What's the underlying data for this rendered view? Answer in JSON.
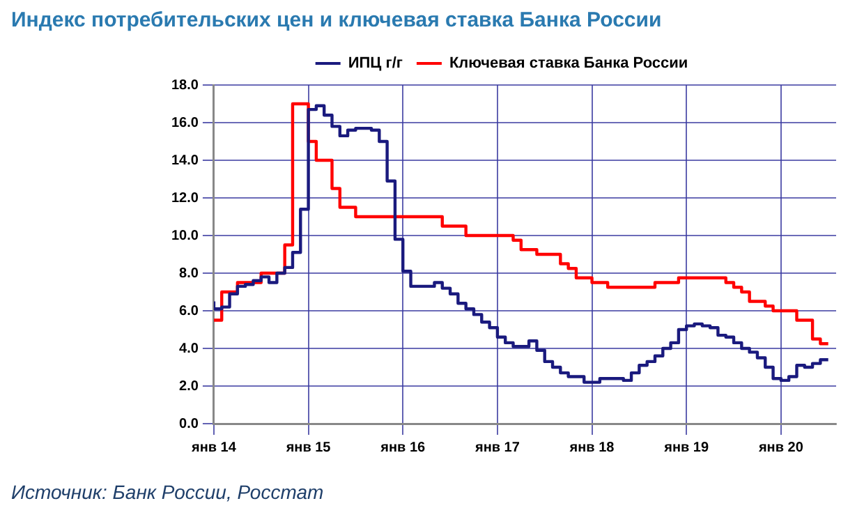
{
  "chart_data": {
    "type": "step",
    "title": "Индекс потребительских цен и ключевая ставка Банка России",
    "x": [
      "2014-01",
      "2014-02",
      "2014-03",
      "2014-04",
      "2014-05",
      "2014-06",
      "2014-07",
      "2014-08",
      "2014-09",
      "2014-10",
      "2014-11",
      "2014-12",
      "2015-01",
      "2015-02",
      "2015-03",
      "2015-04",
      "2015-05",
      "2015-06",
      "2015-07",
      "2015-08",
      "2015-09",
      "2015-10",
      "2015-11",
      "2015-12",
      "2016-01",
      "2016-02",
      "2016-03",
      "2016-04",
      "2016-05",
      "2016-06",
      "2016-07",
      "2016-08",
      "2016-09",
      "2016-10",
      "2016-11",
      "2016-12",
      "2017-01",
      "2017-02",
      "2017-03",
      "2017-04",
      "2017-05",
      "2017-06",
      "2017-07",
      "2017-08",
      "2017-09",
      "2017-10",
      "2017-11",
      "2017-12",
      "2018-01",
      "2018-02",
      "2018-03",
      "2018-04",
      "2018-05",
      "2018-06",
      "2018-07",
      "2018-08",
      "2018-09",
      "2018-10",
      "2018-11",
      "2018-12",
      "2019-01",
      "2019-02",
      "2019-03",
      "2019-04",
      "2019-05",
      "2019-06",
      "2019-07",
      "2019-08",
      "2019-09",
      "2019-10",
      "2019-11",
      "2019-12",
      "2020-01",
      "2020-02",
      "2020-03",
      "2020-04",
      "2020-05",
      "2020-06",
      "2020-07"
    ],
    "series": [
      {
        "name": "ИПЦ г/г",
        "color": "#1a1a7e",
        "values": [
          6.5,
          6.1,
          6.2,
          6.9,
          7.3,
          7.4,
          7.6,
          7.8,
          7.5,
          8.0,
          8.3,
          9.1,
          11.4,
          16.7,
          16.9,
          16.4,
          15.8,
          15.3,
          15.6,
          15.7,
          15.7,
          15.6,
          15.0,
          12.9,
          9.8,
          8.1,
          7.3,
          7.3,
          7.3,
          7.5,
          7.2,
          6.9,
          6.4,
          6.1,
          5.8,
          5.4,
          5.1,
          4.6,
          4.3,
          4.1,
          4.1,
          4.4,
          3.9,
          3.3,
          3.0,
          2.7,
          2.5,
          2.5,
          2.2,
          2.2,
          2.4,
          2.4,
          2.4,
          2.3,
          2.7,
          3.1,
          3.3,
          3.6,
          4.0,
          4.3,
          5.0,
          5.2,
          5.3,
          5.2,
          5.1,
          4.7,
          4.6,
          4.3,
          4.0,
          3.8,
          3.5,
          3.0,
          2.4,
          2.3,
          2.5,
          3.1,
          3.0,
          3.2,
          3.4
        ]
      },
      {
        "name": "Ключевая ставка Банка России",
        "color": "#ff0000",
        "values": [
          5.5,
          5.5,
          7.0,
          7.0,
          7.5,
          7.5,
          7.5,
          8.0,
          8.0,
          8.0,
          9.5,
          17.0,
          17.0,
          15.0,
          14.0,
          14.0,
          12.5,
          11.5,
          11.5,
          11.0,
          11.0,
          11.0,
          11.0,
          11.0,
          11.0,
          11.0,
          11.0,
          11.0,
          11.0,
          11.0,
          10.5,
          10.5,
          10.5,
          10.0,
          10.0,
          10.0,
          10.0,
          10.0,
          10.0,
          9.75,
          9.25,
          9.25,
          9.0,
          9.0,
          9.0,
          8.5,
          8.25,
          7.75,
          7.75,
          7.5,
          7.5,
          7.25,
          7.25,
          7.25,
          7.25,
          7.25,
          7.25,
          7.5,
          7.5,
          7.5,
          7.75,
          7.75,
          7.75,
          7.75,
          7.75,
          7.75,
          7.5,
          7.25,
          7.0,
          6.5,
          6.5,
          6.25,
          6.0,
          6.0,
          6.0,
          5.5,
          5.5,
          4.5,
          4.25
        ]
      }
    ],
    "xlim": [
      "2014-01",
      "2020-08"
    ],
    "xticks": [
      {
        "value": "2014-01",
        "label": "янв 14"
      },
      {
        "value": "2015-01",
        "label": "янв 15"
      },
      {
        "value": "2016-01",
        "label": "янв 16"
      },
      {
        "value": "2017-01",
        "label": "янв 17"
      },
      {
        "value": "2018-01",
        "label": "янв 18"
      },
      {
        "value": "2019-01",
        "label": "янв 19"
      },
      {
        "value": "2020-01",
        "label": "янв 20"
      }
    ],
    "ylim": [
      0,
      18
    ],
    "yticks": [
      {
        "value": 0,
        "label": "0.0"
      },
      {
        "value": 2,
        "label": "2.0"
      },
      {
        "value": 4,
        "label": "4.0"
      },
      {
        "value": 6,
        "label": "6.0"
      },
      {
        "value": 8,
        "label": "8.0"
      },
      {
        "value": 10,
        "label": "10.0"
      },
      {
        "value": 12,
        "label": "12.0"
      },
      {
        "value": 14,
        "label": "14.0"
      },
      {
        "value": 16,
        "label": "16.0"
      },
      {
        "value": 18,
        "label": "18.0"
      }
    ],
    "grid": true,
    "legend": "top",
    "annotations": [
      "Источник: Банк России, Росстат"
    ]
  }
}
